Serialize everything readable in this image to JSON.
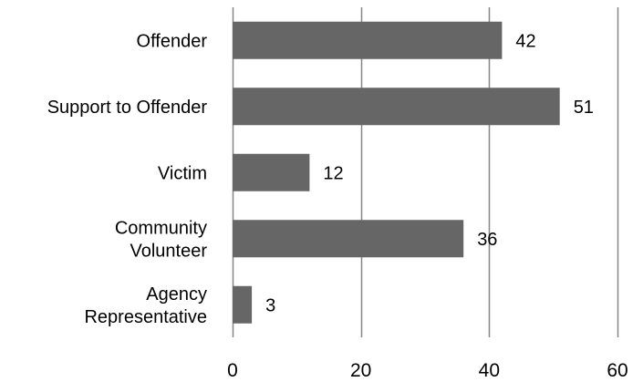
{
  "chart_data": {
    "type": "bar",
    "orientation": "horizontal",
    "categories": [
      [
        "Offender"
      ],
      [
        "Support to Offender"
      ],
      [
        "Victim"
      ],
      [
        "Community",
        "Volunteer"
      ],
      [
        "Agency",
        "Representative"
      ]
    ],
    "values": [
      42,
      51,
      12,
      36,
      3
    ],
    "data_labels": [
      "42",
      "51",
      "12",
      "36",
      "3"
    ],
    "xlim": [
      0,
      60
    ],
    "x_ticks": [
      0,
      20,
      40,
      60
    ],
    "x_tick_labels": [
      "0",
      "20",
      "40",
      "60"
    ],
    "grid": "vertical",
    "legend": "none",
    "bar_color": "#666666",
    "gridline_color": "#868686"
  }
}
